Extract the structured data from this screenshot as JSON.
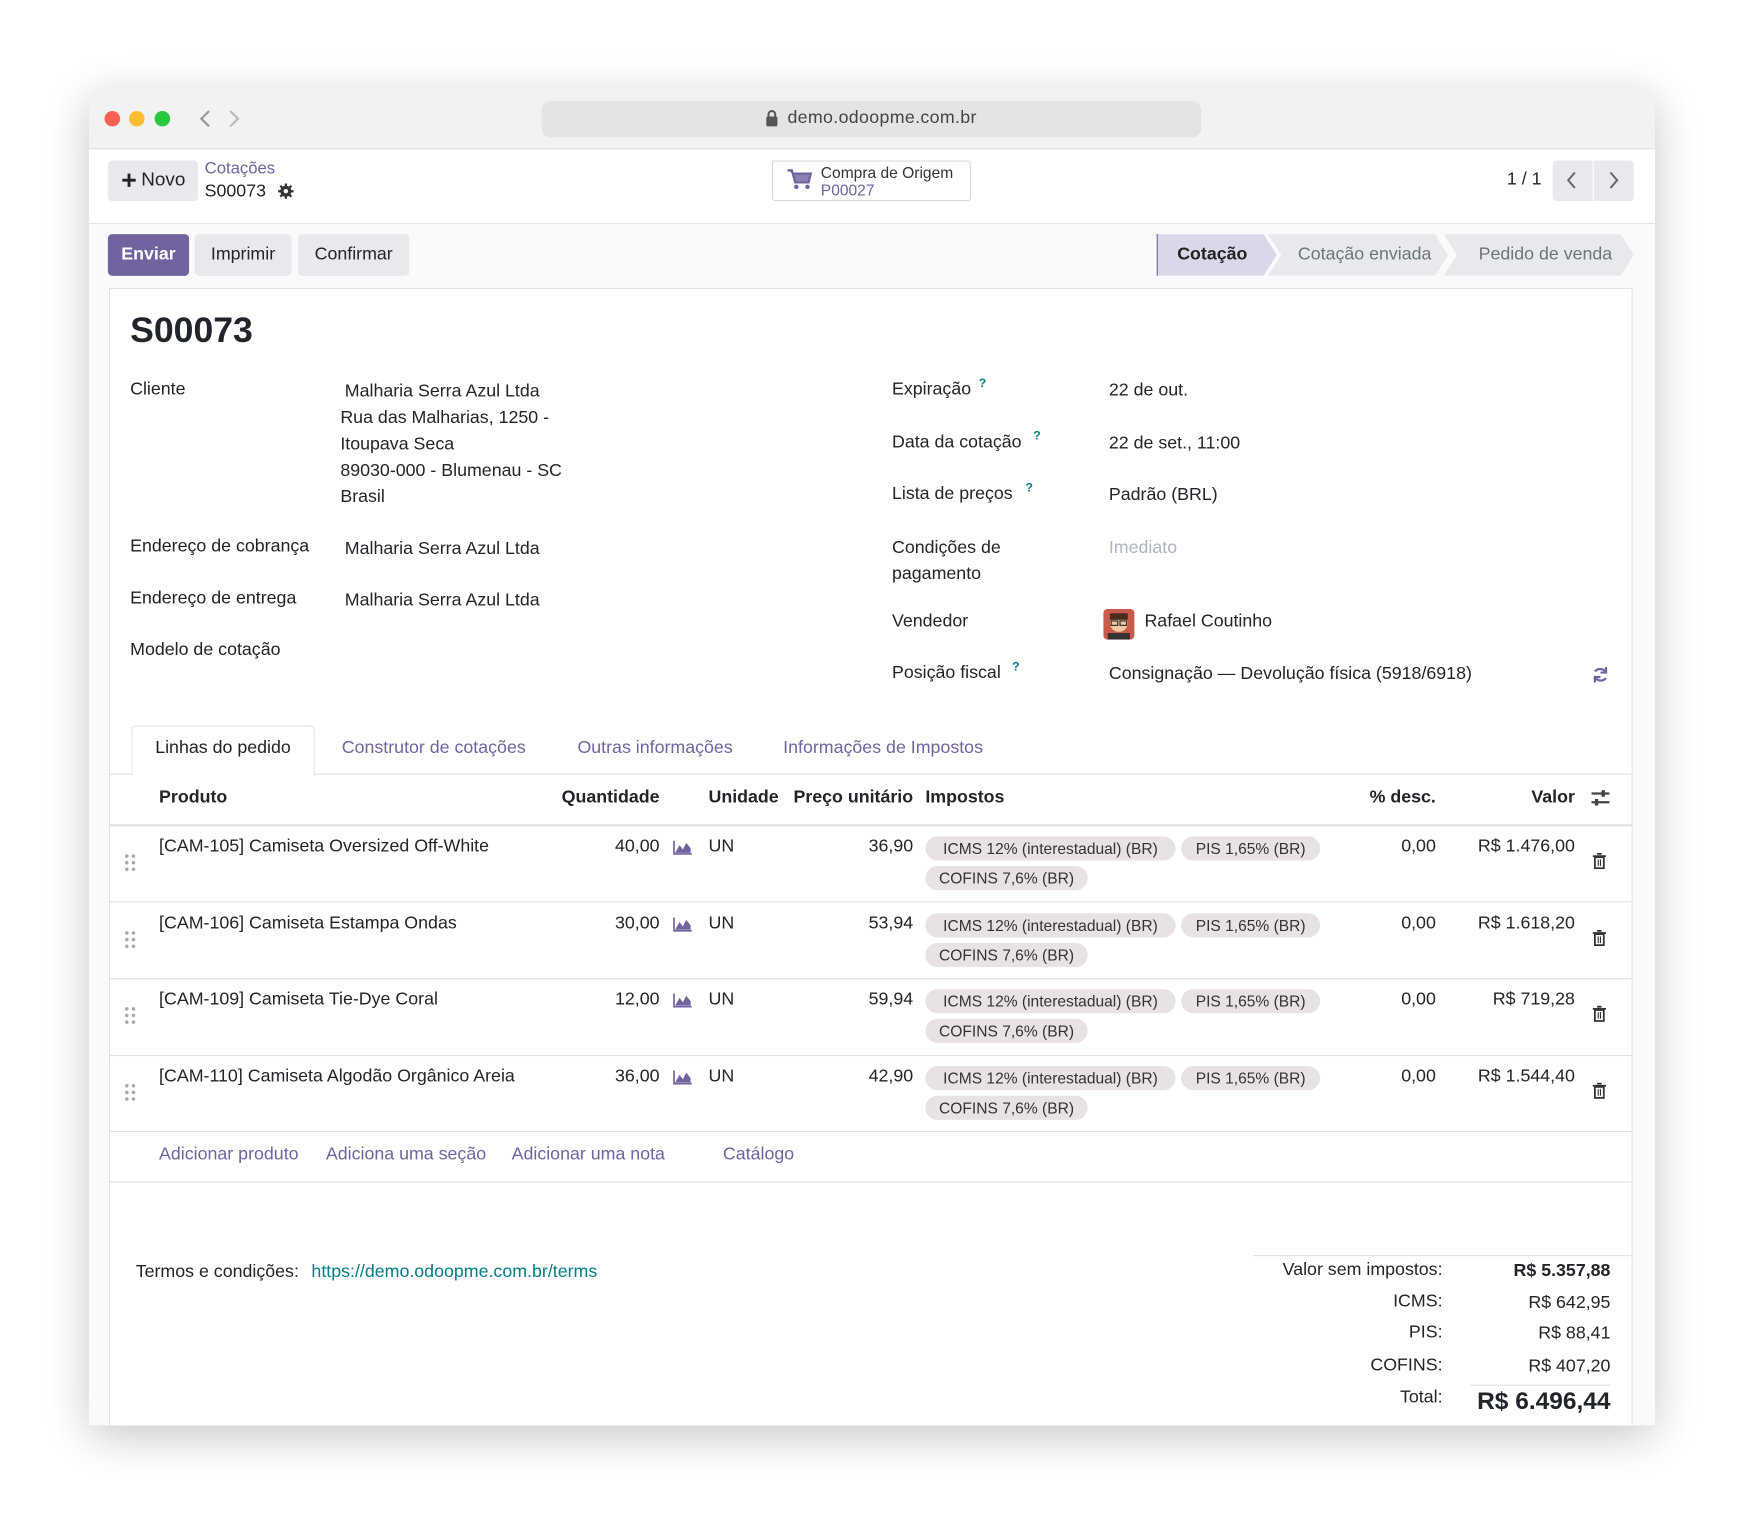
{
  "browser": {
    "url": "demo.odoopme.com.br"
  },
  "control_panel": {
    "new_button": "Novo",
    "breadcrumb": "Cotações",
    "record": "S00073",
    "smart_button": {
      "label": "Compra de Origem",
      "value": "P00027"
    },
    "pager": "1 / 1"
  },
  "actions": [
    "Enviar",
    "Imprimir",
    "Confirmar"
  ],
  "statusbar": [
    "Cotação",
    "Cotação enviada",
    "Pedido de venda"
  ],
  "form": {
    "title": "S00073",
    "left": [
      {
        "label": "Cliente",
        "value": [
          "Malharia Serra Azul Ltda",
          "Rua das Malharias, 1250 -",
          "Itoupava Seca",
          "89030-000 - Blumenau - SC",
          "Brasil"
        ]
      },
      {
        "label": "Endereço de cobrança",
        "value": [
          "Malharia Serra Azul Ltda"
        ]
      },
      {
        "label": "Endereço de entrega",
        "value": [
          "Malharia Serra Azul Ltda"
        ]
      },
      {
        "label": "Modelo de cotação",
        "value": []
      }
    ],
    "right": [
      {
        "label": "Expiração",
        "help": "?",
        "value": "22 de out."
      },
      {
        "label": "Data da cotação",
        "help": "?",
        "value": "22 de set., 11:00"
      },
      {
        "label": "Lista de preços",
        "help": "?",
        "value": "Padrão (BRL)"
      },
      {
        "label": "Condições de pagamento",
        "placeholder": "Imediato"
      },
      {
        "label": "Vendedor",
        "value": "Rafael Coutinho"
      },
      {
        "label": "Posição fiscal",
        "help": "?",
        "value": "Consignação — Devolução física (5918/6918)"
      }
    ]
  },
  "tabs": [
    "Linhas do pedido",
    "Construtor de cotações",
    "Outras informações",
    "Informações de Impostos"
  ],
  "table": {
    "columns": [
      "Produto",
      "Quantidade",
      "Unidade",
      "Preço unitário",
      "Impostos",
      "% desc.",
      "Valor"
    ],
    "rows": [
      {
        "product": "[CAM-105] Camiseta Oversized Off-White",
        "quantity": "40,00",
        "unit": "UN",
        "price": "36,90",
        "taxes": [
          "ICMS 12% (interestadual) (BR)",
          "PIS 1,65% (BR)",
          "COFINS 7,6% (BR)"
        ],
        "discount": "0,00",
        "amount": "R$ 1.476,00"
      },
      {
        "product": "[CAM-106] Camiseta Estampa Ondas",
        "quantity": "30,00",
        "unit": "UN",
        "price": "53,94",
        "taxes": [
          "ICMS 12% (interestadual) (BR)",
          "PIS 1,65% (BR)",
          "COFINS 7,6% (BR)"
        ],
        "discount": "0,00",
        "amount": "R$ 1.618,20"
      },
      {
        "product": "[CAM-109] Camiseta Tie-Dye Coral",
        "quantity": "12,00",
        "unit": "UN",
        "price": "59,94",
        "taxes": [
          "ICMS 12% (interestadual) (BR)",
          "PIS 1,65% (BR)",
          "COFINS 7,6% (BR)"
        ],
        "discount": "0,00",
        "amount": "R$ 719,28"
      },
      {
        "product": "[CAM-110] Camiseta Algodão Orgânico Areia",
        "quantity": "36,00",
        "unit": "UN",
        "price": "42,90",
        "taxes": [
          "ICMS 12% (interestadual) (BR)",
          "PIS 1,65% (BR)",
          "COFINS 7,6% (BR)"
        ],
        "discount": "0,00",
        "amount": "R$ 1.544,40"
      }
    ],
    "add_links": [
      "Adicionar produto",
      "Adiciona uma seção",
      "Adicionar uma nota",
      "Catálogo"
    ]
  },
  "terms": {
    "label": "Termos e condições:",
    "url": "https://demo.odoopme.com.br/terms"
  },
  "totals": [
    {
      "label": "Valor sem impostos:",
      "value": "R$ 5.357,88"
    },
    {
      "label": "ICMS:",
      "value": "R$ 642,95"
    },
    {
      "label": "PIS:",
      "value": "R$ 88,41"
    },
    {
      "label": "COFINS:",
      "value": "R$ 407,20"
    },
    {
      "label": "Total:",
      "value": "R$ 6.496,44"
    }
  ]
}
